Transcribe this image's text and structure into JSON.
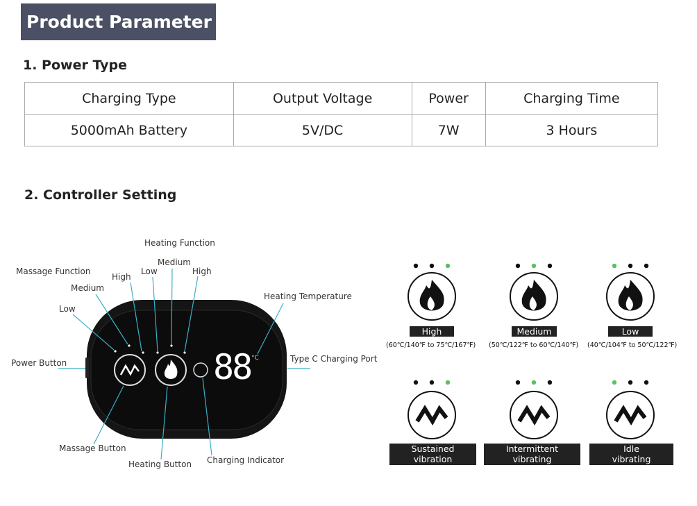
{
  "header": {
    "title": "Product Parameter"
  },
  "power_type": {
    "heading": "1. Power Type",
    "columns": [
      "Charging Type",
      "Output Voltage",
      "Power",
      "Charging Time"
    ],
    "rows": [
      [
        "5000mAh Battery",
        "5V/DC",
        "7W",
        "3 Hours"
      ]
    ]
  },
  "controller": {
    "heading": "2. Controller Setting",
    "labels": {
      "massage_function": "Massage Function",
      "massage_low": "Low",
      "massage_medium": "Medium",
      "massage_high": "High",
      "heating_function": "Heating Function",
      "heating_low": "Low",
      "heating_medium": "Medium",
      "heating_high": "High",
      "heating_temperature": "Heating Temperature",
      "power_button": "Power Button",
      "type_c_port": "Type C Charging Port",
      "massage_button": "Massage Button",
      "heating_button": "Heating Button",
      "charging_indicator": "Charging Indicator"
    },
    "display": {
      "digits": "88",
      "unit": "°C"
    },
    "heat_modes": [
      {
        "label": "High",
        "range": "(60℃/140℉ to 75℃/167℉)",
        "active_dot": 3
      },
      {
        "label": "Medium",
        "range": "(50℃/122℉ to 60℃/140℉)",
        "active_dot": 2
      },
      {
        "label": "Low",
        "range": "(40℃/104℉ to 50℃/122℉)",
        "active_dot": 1
      }
    ],
    "vibration_modes": [
      {
        "line1": "Sustained",
        "line2": "vibration",
        "active_dot": 3
      },
      {
        "line1": "Intermittent",
        "line2": "vibrating",
        "active_dot": 2
      },
      {
        "line1": "Idle",
        "line2": "vibrating",
        "active_dot": 1
      }
    ]
  },
  "colors": {
    "header_bg": "#4b5064",
    "accent_line": "#3ab0c8",
    "active_dot": "#5cbf60",
    "device": "#1a1a1a"
  }
}
